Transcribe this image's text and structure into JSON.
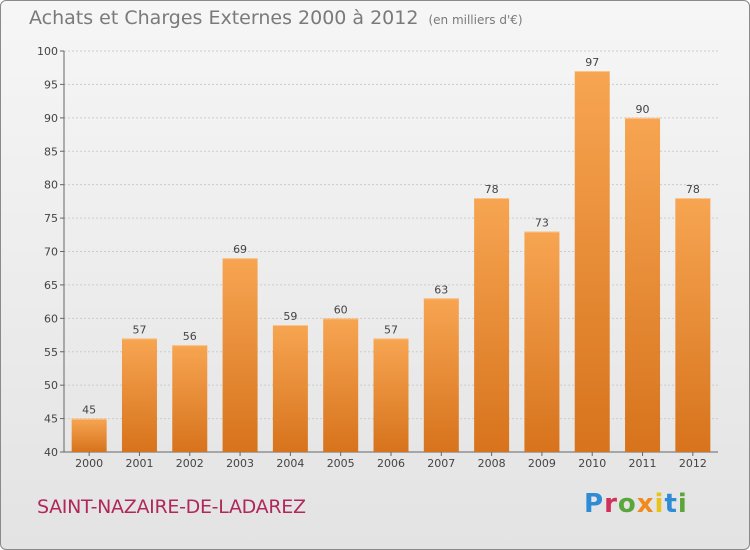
{
  "header": {
    "title": "Achats et Charges Externes 2000 à 2012",
    "subtitle": "(en milliers d'€)"
  },
  "footer": {
    "commune": "SAINT-NAZAIRE-DE-LADAREZ",
    "logo_letters": [
      "P",
      "r",
      "o",
      "x",
      "i",
      "t",
      "i"
    ]
  },
  "colors": {
    "bar_top": "#f7a552",
    "bar_bottom": "#d7731c",
    "commune_text": "#b0285a",
    "grid": "#cccccc"
  },
  "chart_data": {
    "type": "bar",
    "title": "Achats et Charges Externes 2000 à 2012",
    "subtitle": "(en milliers d'€)",
    "xlabel": "",
    "ylabel": "",
    "categories": [
      "2000",
      "2001",
      "2002",
      "2003",
      "2004",
      "2005",
      "2006",
      "2007",
      "2008",
      "2009",
      "2010",
      "2011",
      "2012"
    ],
    "values": [
      45,
      57,
      56,
      69,
      59,
      60,
      57,
      63,
      78,
      73,
      97,
      90,
      78
    ],
    "ylim": [
      40,
      100
    ],
    "yticks": [
      40,
      45,
      50,
      55,
      60,
      65,
      70,
      75,
      80,
      85,
      90,
      95,
      100
    ],
    "grid": true,
    "data_labels": true
  }
}
